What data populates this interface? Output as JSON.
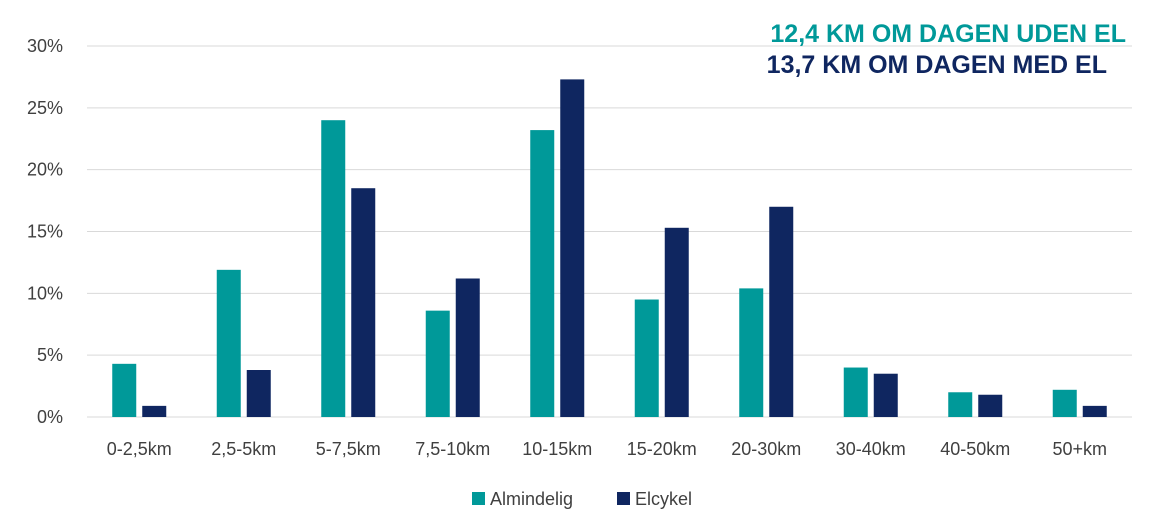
{
  "chart_data": {
    "type": "bar",
    "categories": [
      "0-2,5km",
      "2,5-5km",
      "5-7,5km",
      "7,5-10km",
      "10-15km",
      "15-20km",
      "20-30km",
      "30-40km",
      "40-50km",
      "50+km"
    ],
    "series": [
      {
        "name": "Almindelig",
        "color": "#009999",
        "values": [
          4.3,
          11.9,
          24.0,
          8.6,
          23.2,
          9.5,
          10.4,
          4.0,
          2.0,
          2.2
        ]
      },
      {
        "name": "Elcykel",
        "color": "#0f2660",
        "values": [
          0.9,
          3.8,
          18.5,
          11.2,
          27.3,
          15.3,
          17.0,
          3.5,
          1.8,
          0.9
        ]
      }
    ],
    "yticks": [
      "0%",
      "5%",
      "10%",
      "15%",
      "20%",
      "25%",
      "30%"
    ],
    "ylim": [
      0,
      30
    ],
    "grid": true,
    "legend_position": "bottom",
    "annotations": [
      {
        "text": "12,4 KM OM DAGEN UDEN EL",
        "color": "#009999"
      },
      {
        "text": "13,7 KM OM DAGEN MED EL",
        "color": "#0f2660"
      }
    ]
  }
}
